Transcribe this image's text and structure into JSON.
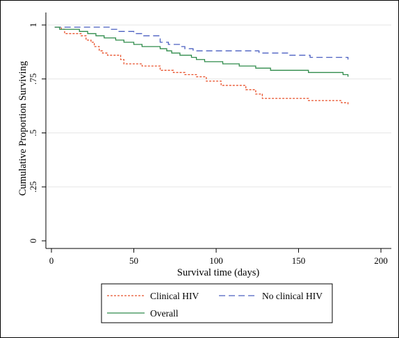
{
  "chart_data": {
    "type": "line",
    "step": true,
    "xlabel": "Survival time (days)",
    "ylabel": "Cumulative Proportion Surviving",
    "xlim": [
      0,
      200
    ],
    "ylim": [
      0,
      1
    ],
    "xticks": [
      0,
      50,
      100,
      150,
      200
    ],
    "yticks": [
      0,
      0.25,
      0.5,
      0.75,
      1
    ],
    "ytick_labels": [
      "0",
      ".25",
      ".5",
      ".75",
      "1"
    ],
    "grid": "horizontal",
    "legend_position": "bottom",
    "series": [
      {
        "name": "Clinical HIV",
        "color": "#e8502a",
        "style": "dotted",
        "x": [
          2,
          6,
          8,
          18,
          21,
          24,
          26,
          29,
          31,
          34,
          42,
          44,
          55,
          66,
          74,
          81,
          88,
          94,
          103,
          118,
          124,
          128,
          156,
          176,
          180
        ],
        "y": [
          0.99,
          0.98,
          0.96,
          0.95,
          0.93,
          0.92,
          0.9,
          0.88,
          0.87,
          0.86,
          0.84,
          0.82,
          0.81,
          0.79,
          0.78,
          0.77,
          0.76,
          0.74,
          0.72,
          0.7,
          0.68,
          0.66,
          0.65,
          0.64,
          0.63
        ]
      },
      {
        "name": "No clinical HIV",
        "color": "#4a5fc1",
        "style": "dashed",
        "x": [
          2,
          4,
          36,
          41,
          50,
          56,
          66,
          71,
          78,
          81,
          86,
          126,
          128,
          144,
          157,
          180
        ],
        "y": [
          0.99,
          0.99,
          0.98,
          0.97,
          0.96,
          0.95,
          0.92,
          0.91,
          0.9,
          0.89,
          0.88,
          0.87,
          0.87,
          0.86,
          0.85,
          0.84
        ]
      },
      {
        "name": "Overall",
        "color": "#2e8b4a",
        "style": "solid",
        "x": [
          2,
          5,
          17,
          22,
          27,
          32,
          39,
          44,
          50,
          55,
          66,
          70,
          73,
          78,
          85,
          88,
          93,
          104,
          114,
          124,
          133,
          156,
          177,
          180
        ],
        "y": [
          0.99,
          0.98,
          0.97,
          0.96,
          0.95,
          0.94,
          0.93,
          0.92,
          0.91,
          0.9,
          0.89,
          0.88,
          0.87,
          0.86,
          0.85,
          0.84,
          0.83,
          0.82,
          0.81,
          0.8,
          0.79,
          0.78,
          0.77,
          0.76
        ]
      }
    ]
  }
}
